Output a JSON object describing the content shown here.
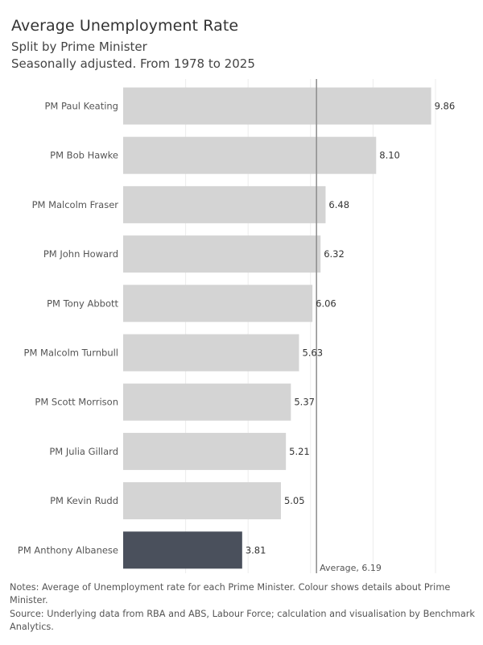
{
  "header": {
    "title": "Average Unemployment Rate",
    "subtitle1": "Split by Prime Minister",
    "subtitle2": "Seasonally adjusted. From 1978 to 2025"
  },
  "footer": {
    "notes": "Notes: Average of Unemployment rate for each Prime Minister.  Colour shows details about Prime Minister.",
    "source": "Source: Underlying data from RBA and ABS, Labour Force; calculation and visualisation by Benchmark Analytics."
  },
  "chart_data": {
    "type": "bar",
    "orientation": "horizontal",
    "categories": [
      "PM Paul Keating",
      "PM Bob Hawke",
      "PM Malcolm Fraser",
      "PM John Howard",
      "PM Tony Abbott",
      "PM Malcolm Turnbull",
      "PM Scott Morrison",
      "PM Julia Gillard",
      "PM Kevin Rudd",
      "PM Anthony Albanese"
    ],
    "values": [
      9.86,
      8.1,
      6.48,
      6.32,
      6.06,
      5.63,
      5.37,
      5.21,
      5.05,
      3.81
    ],
    "labels": [
      "9.86",
      "8.10",
      "6.48",
      "6.32",
      "6.06",
      "5.63",
      "5.37",
      "5.21",
      "5.05",
      "3.81"
    ],
    "highlight": "PM Anthony Albanese",
    "colors": {
      "default": "#d4d4d4",
      "highlight": "#4a505c",
      "reference_line": "#8c8c8c",
      "grid": "#ececec"
    },
    "reference_line": {
      "value": 6.19,
      "label": "Average, 6.19"
    },
    "xlim": [
      0,
      10
    ],
    "grid": "vertical",
    "title": "Average Unemployment Rate",
    "xlabel": "",
    "ylabel": ""
  }
}
